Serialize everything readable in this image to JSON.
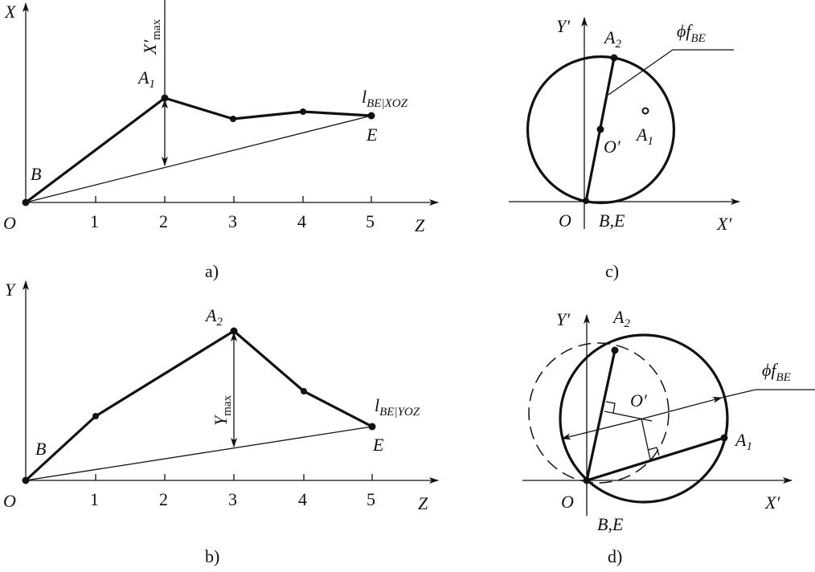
{
  "colors": {
    "ink": "#111111",
    "background": "#ffffff"
  },
  "panel_a": {
    "caption": "a)",
    "axis_x": "X",
    "axis_z": "Z",
    "origin": "O",
    "ticks": [
      "1",
      "2",
      "3",
      "4",
      "5"
    ],
    "point_b": "B",
    "point_e": "E",
    "point_a1": "A",
    "point_a1_sub": "1",
    "xmax": "X′",
    "xmax_sub": "max",
    "line_label": "l",
    "line_label_sub": "BE|XOZ"
  },
  "panel_b": {
    "caption": "b)",
    "axis_y": "Y",
    "axis_z": "Z",
    "origin": "O",
    "ticks": [
      "1",
      "2",
      "3",
      "4",
      "5"
    ],
    "point_b": "B",
    "point_e": "E",
    "point_a2": "A",
    "point_a2_sub": "2",
    "ymax": "Y",
    "ymax_sub": "max",
    "line_label": "l",
    "line_label_sub": "BE|YOZ"
  },
  "panel_c": {
    "caption": "c)",
    "axis_x": "X′",
    "axis_y": "Y′",
    "origin": "O",
    "point_be": "B,E",
    "center": "O′",
    "point_a1": "A",
    "point_a1_sub": "1",
    "point_a2": "A",
    "point_a2_sub": "2",
    "diameter": "ϕf",
    "diameter_sub": "BE"
  },
  "panel_d": {
    "caption": "d)",
    "axis_x": "X′",
    "axis_y": "Y′",
    "origin": "O",
    "point_be": "B,E",
    "center": "O′",
    "point_a1": "A",
    "point_a1_sub": "1",
    "point_a2": "A",
    "point_a2_sub": "2",
    "diameter": "ϕf",
    "diameter_sub": "BE"
  }
}
